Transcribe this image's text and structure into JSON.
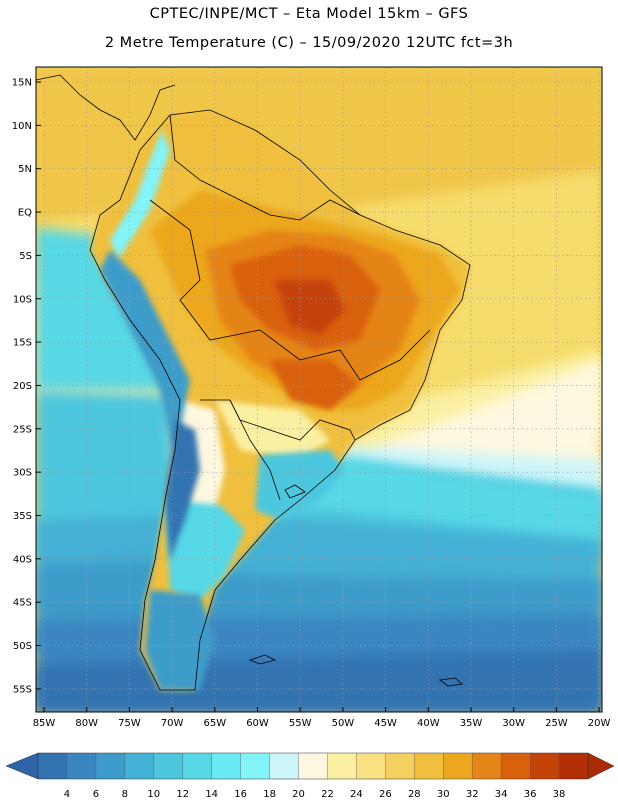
{
  "header": {
    "line1": "CPTEC/INPE/MCT –  Eta Model 15km – GFS",
    "line2": "2 Metre Temperature (C) – 15/09/2020 12UTC fct=3h"
  },
  "axes": {
    "lat_labels": [
      "15N",
      "10N",
      "5N",
      "EQ",
      "5S",
      "10S",
      "15S",
      "20S",
      "25S",
      "30S",
      "35S",
      "40S",
      "45S",
      "50S",
      "55S"
    ],
    "lon_labels": [
      "85W",
      "80W",
      "75W",
      "70W",
      "65W",
      "60W",
      "55W",
      "50W",
      "45W",
      "40W",
      "35W",
      "30W",
      "25W",
      "20W"
    ]
  },
  "colorbar": {
    "values": [
      "4",
      "6",
      "8",
      "10",
      "12",
      "14",
      "16",
      "18",
      "20",
      "22",
      "24",
      "26",
      "28",
      "30",
      "32",
      "34",
      "36",
      "38"
    ],
    "colors": [
      "#3373b0",
      "#3a86c0",
      "#3d9cca",
      "#44b1d6",
      "#4dc7de",
      "#56d8e6",
      "#6aeaf2",
      "#82f4fa",
      "#cdf5fa",
      "#fdf8df",
      "#fbf0a2",
      "#f9e184",
      "#f5d05e",
      "#f0bf3e",
      "#eca71e",
      "#e58417",
      "#d9600c",
      "#c54308",
      "#b32e05"
    ],
    "low_color": "#2f64a8",
    "high_color": "#a92b06"
  }
}
